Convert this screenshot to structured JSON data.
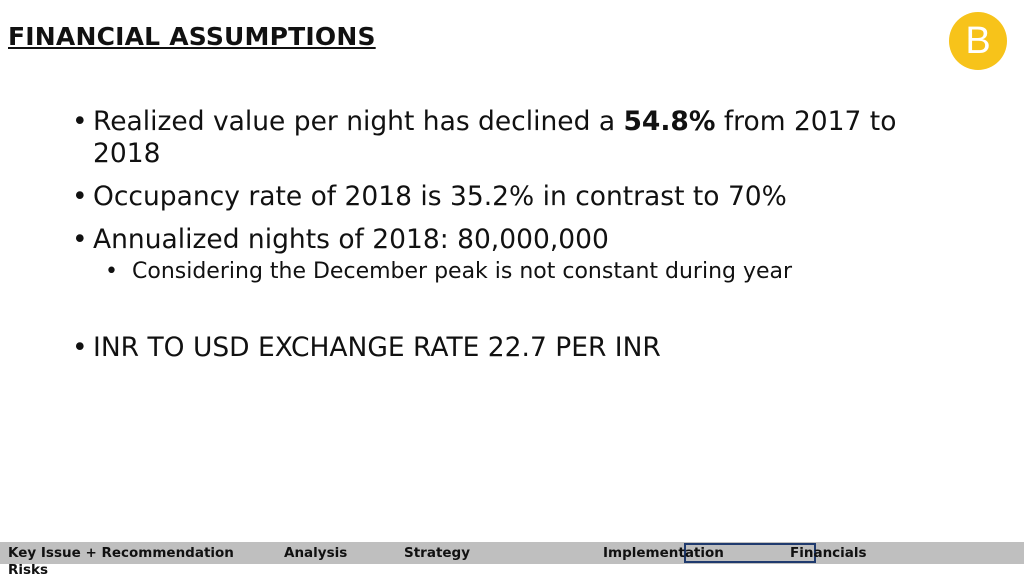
{
  "header": {
    "title": "FINANCIAL ASSUMPTIONS",
    "logo": "B"
  },
  "bullets": [
    {
      "parts": [
        {
          "text": "Realized value per night has declined a "
        },
        {
          "text": "54.8%",
          "bold": true
        },
        {
          "text": " from 2017 to 2018"
        }
      ]
    },
    {
      "parts": [
        {
          "text": "Occupancy rate of 2018 is 35.2% in contrast to 70%"
        }
      ]
    },
    {
      "parts": [
        {
          "text": "Annualized nights of 2018: 80,000,000"
        }
      ]
    },
    {
      "parts": [
        {
          "text": "Considering the December peak is not constant during year"
        }
      ],
      "sub": true
    },
    {
      "parts": [
        {
          "text": "INR TO USD EXCHANGE RATE 22.7 PER INR"
        }
      ]
    }
  ],
  "nav": [
    "Key Issue + Recommendation",
    "Analysis",
    "Strategy",
    "Implementation",
    "Financials",
    "Risks"
  ]
}
